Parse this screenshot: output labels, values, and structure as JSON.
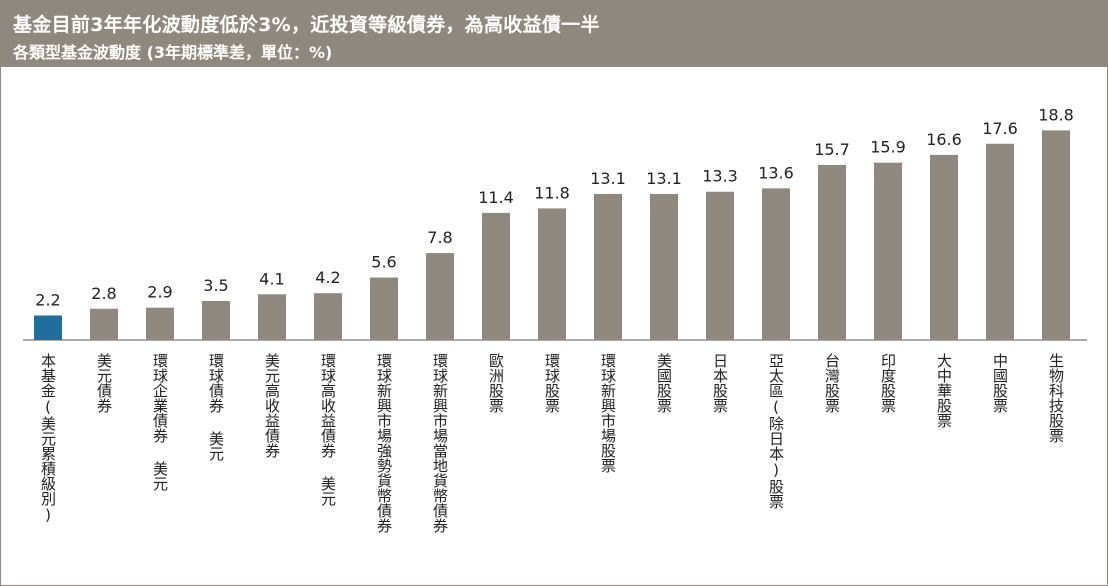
{
  "header": {
    "title": "基金目前3年年化波動度低於3%，近投資等級債券，為高收益債一半",
    "subtitle": "各類型基金波動度 (3年期標準差，單位：%)"
  },
  "colors": {
    "header_bg": "#8f887e",
    "bar_default": "#8f887e",
    "bar_highlight": "#1f6e9e"
  },
  "chart_data": {
    "type": "bar",
    "categories": [
      "本基金(美元累積級別)",
      "美元債券",
      "環球企業債券 美元",
      "環球債券 美元",
      "美元高收益債券",
      "環球高收益債券 美元",
      "環球新興市場強勢貨幣債券",
      "環球新興市場當地貨幣債券",
      "歐洲股票",
      "環球股票",
      "環球新興市場股票",
      "美國股票",
      "日本股票",
      "亞太區(除日本)股票",
      "台灣股票",
      "印度股票",
      "大中華股票",
      "中國股票",
      "生物科技股票"
    ],
    "values": [
      2.2,
      2.8,
      2.9,
      3.5,
      4.1,
      4.2,
      5.6,
      7.8,
      11.4,
      11.8,
      13.1,
      13.1,
      13.3,
      13.6,
      15.7,
      15.9,
      16.6,
      17.6,
      18.8
    ],
    "value_labels": [
      "2.2",
      "2.8",
      "2.9",
      "3.5",
      "4.1",
      "4.2",
      "5.6",
      "7.8",
      "11.4",
      "11.8",
      "13.1",
      "13.1",
      "13.3",
      "13.6",
      "15.7",
      "15.9",
      "16.6",
      "17.6",
      "18.8"
    ],
    "highlight_index": 0,
    "ylim": [
      0,
      20
    ],
    "grid": false,
    "legend": "none"
  }
}
